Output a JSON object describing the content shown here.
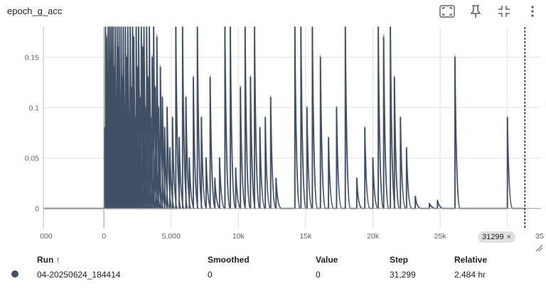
{
  "card": {
    "title": "epoch_g_acc",
    "icons": [
      "fit-domain-icon",
      "pin-icon",
      "collapse-icon",
      "more-vert-icon"
    ]
  },
  "chart_data": {
    "type": "line",
    "title": "epoch_g_acc",
    "xlabel": "",
    "ylabel": "",
    "xlim": [
      -4500,
      32500
    ],
    "ylim": [
      -0.02,
      0.18
    ],
    "x_ticks": [
      "000",
      "0",
      "5,000",
      "10k",
      "15k",
      "20k",
      "25k",
      "30k",
      "35"
    ],
    "x_tick_values": [
      -4500,
      0,
      5000,
      10000,
      15000,
      20000,
      25000,
      30000,
      35000
    ],
    "y_ticks": [
      "0.15",
      "0.1",
      "0.05",
      "0"
    ],
    "y_tick_values": [
      0.15,
      0.1,
      0.05,
      0
    ],
    "grid": true,
    "series": [
      {
        "name": "04-20250624_184414",
        "color": "#425066",
        "raw_color": "#c8cedb",
        "flat_start": -4500,
        "flat_end": 31299,
        "spikes": [
          [
            30,
            0.08
          ],
          [
            120,
            0.18
          ],
          [
            200,
            0.17
          ],
          [
            260,
            0.12
          ],
          [
            320,
            0.18
          ],
          [
            380,
            0.09
          ],
          [
            440,
            0.18
          ],
          [
            500,
            0.15
          ],
          [
            560,
            0.18
          ],
          [
            620,
            0.12
          ],
          [
            680,
            0.18
          ],
          [
            760,
            0.14
          ],
          [
            830,
            0.18
          ],
          [
            900,
            0.11
          ],
          [
            980,
            0.18
          ],
          [
            1050,
            0.16
          ],
          [
            1130,
            0.18
          ],
          [
            1200,
            0.09
          ],
          [
            1280,
            0.18
          ],
          [
            1360,
            0.13
          ],
          [
            1440,
            0.18
          ],
          [
            1520,
            0.1
          ],
          [
            1600,
            0.18
          ],
          [
            1690,
            0.15
          ],
          [
            1780,
            0.18
          ],
          [
            1860,
            0.08
          ],
          [
            1950,
            0.18
          ],
          [
            2040,
            0.12
          ],
          [
            2130,
            0.18
          ],
          [
            2220,
            0.17
          ],
          [
            2310,
            0.09
          ],
          [
            2400,
            0.18
          ],
          [
            2490,
            0.14
          ],
          [
            2580,
            0.18
          ],
          [
            2680,
            0.11
          ],
          [
            2780,
            0.18
          ],
          [
            2880,
            0.16
          ],
          [
            2980,
            0.18
          ],
          [
            3080,
            0.1
          ],
          [
            3180,
            0.18
          ],
          [
            3280,
            0.13
          ],
          [
            3380,
            0.18
          ],
          [
            3480,
            0.09
          ],
          [
            3590,
            0.15
          ],
          [
            3700,
            0.18
          ],
          [
            3820,
            0.12
          ],
          [
            3940,
            0.17
          ],
          [
            4060,
            0.1
          ],
          [
            4200,
            0.14
          ],
          [
            4350,
            0.11
          ],
          [
            4520,
            0.08
          ],
          [
            4700,
            0.1
          ],
          [
            4900,
            0.06
          ],
          [
            5100,
            0.09
          ],
          [
            5350,
            0.18
          ],
          [
            5600,
            0.07
          ],
          [
            5850,
            0.18
          ],
          [
            6100,
            0.11
          ],
          [
            6350,
            0.05
          ],
          [
            6650,
            0.13
          ],
          [
            6950,
            0.18
          ],
          [
            7250,
            0.09
          ],
          [
            7600,
            0.05
          ],
          [
            7900,
            0.13
          ],
          [
            8250,
            0.03
          ],
          [
            8600,
            0.05
          ],
          [
            9000,
            0.18
          ],
          [
            9400,
            0.18
          ],
          [
            9800,
            0.04
          ],
          [
            10150,
            0.12
          ],
          [
            10500,
            0.18
          ],
          [
            10900,
            0.13
          ],
          [
            11200,
            0.18
          ],
          [
            11600,
            0.08
          ],
          [
            12000,
            0.09
          ],
          [
            12400,
            0.11
          ],
          [
            12800,
            0.03
          ],
          [
            14200,
            0.18
          ],
          [
            14650,
            0.18
          ],
          [
            15100,
            0.1
          ],
          [
            15500,
            0.18
          ],
          [
            16100,
            0.15
          ],
          [
            16700,
            0.07
          ],
          [
            17300,
            0.1
          ],
          [
            17950,
            0.18
          ],
          [
            18800,
            0.03
          ],
          [
            19400,
            0.08
          ],
          [
            20000,
            0.05
          ],
          [
            20400,
            0.18
          ],
          [
            20800,
            0.17
          ],
          [
            21300,
            0.18
          ],
          [
            21600,
            0.13
          ],
          [
            22050,
            0.09
          ],
          [
            22500,
            0.06
          ],
          [
            23150,
            0.012
          ],
          [
            24200,
            0.005
          ],
          [
            24800,
            0.008
          ],
          [
            26100,
            0.15
          ],
          [
            30000,
            0.09
          ]
        ]
      }
    ],
    "crosshair_step": 31299
  },
  "badge": {
    "label": "31299",
    "close": "×"
  },
  "table": {
    "headers": {
      "run": "Run ↑",
      "smoothed": "Smoothed",
      "value": "Value",
      "step": "Step",
      "relative": "Relative"
    },
    "rows": [
      {
        "run": "04-20250624_184414",
        "smoothed": "0",
        "value": "0",
        "step": "31,299",
        "relative": "2.484 hr",
        "color": "#425066"
      }
    ]
  }
}
